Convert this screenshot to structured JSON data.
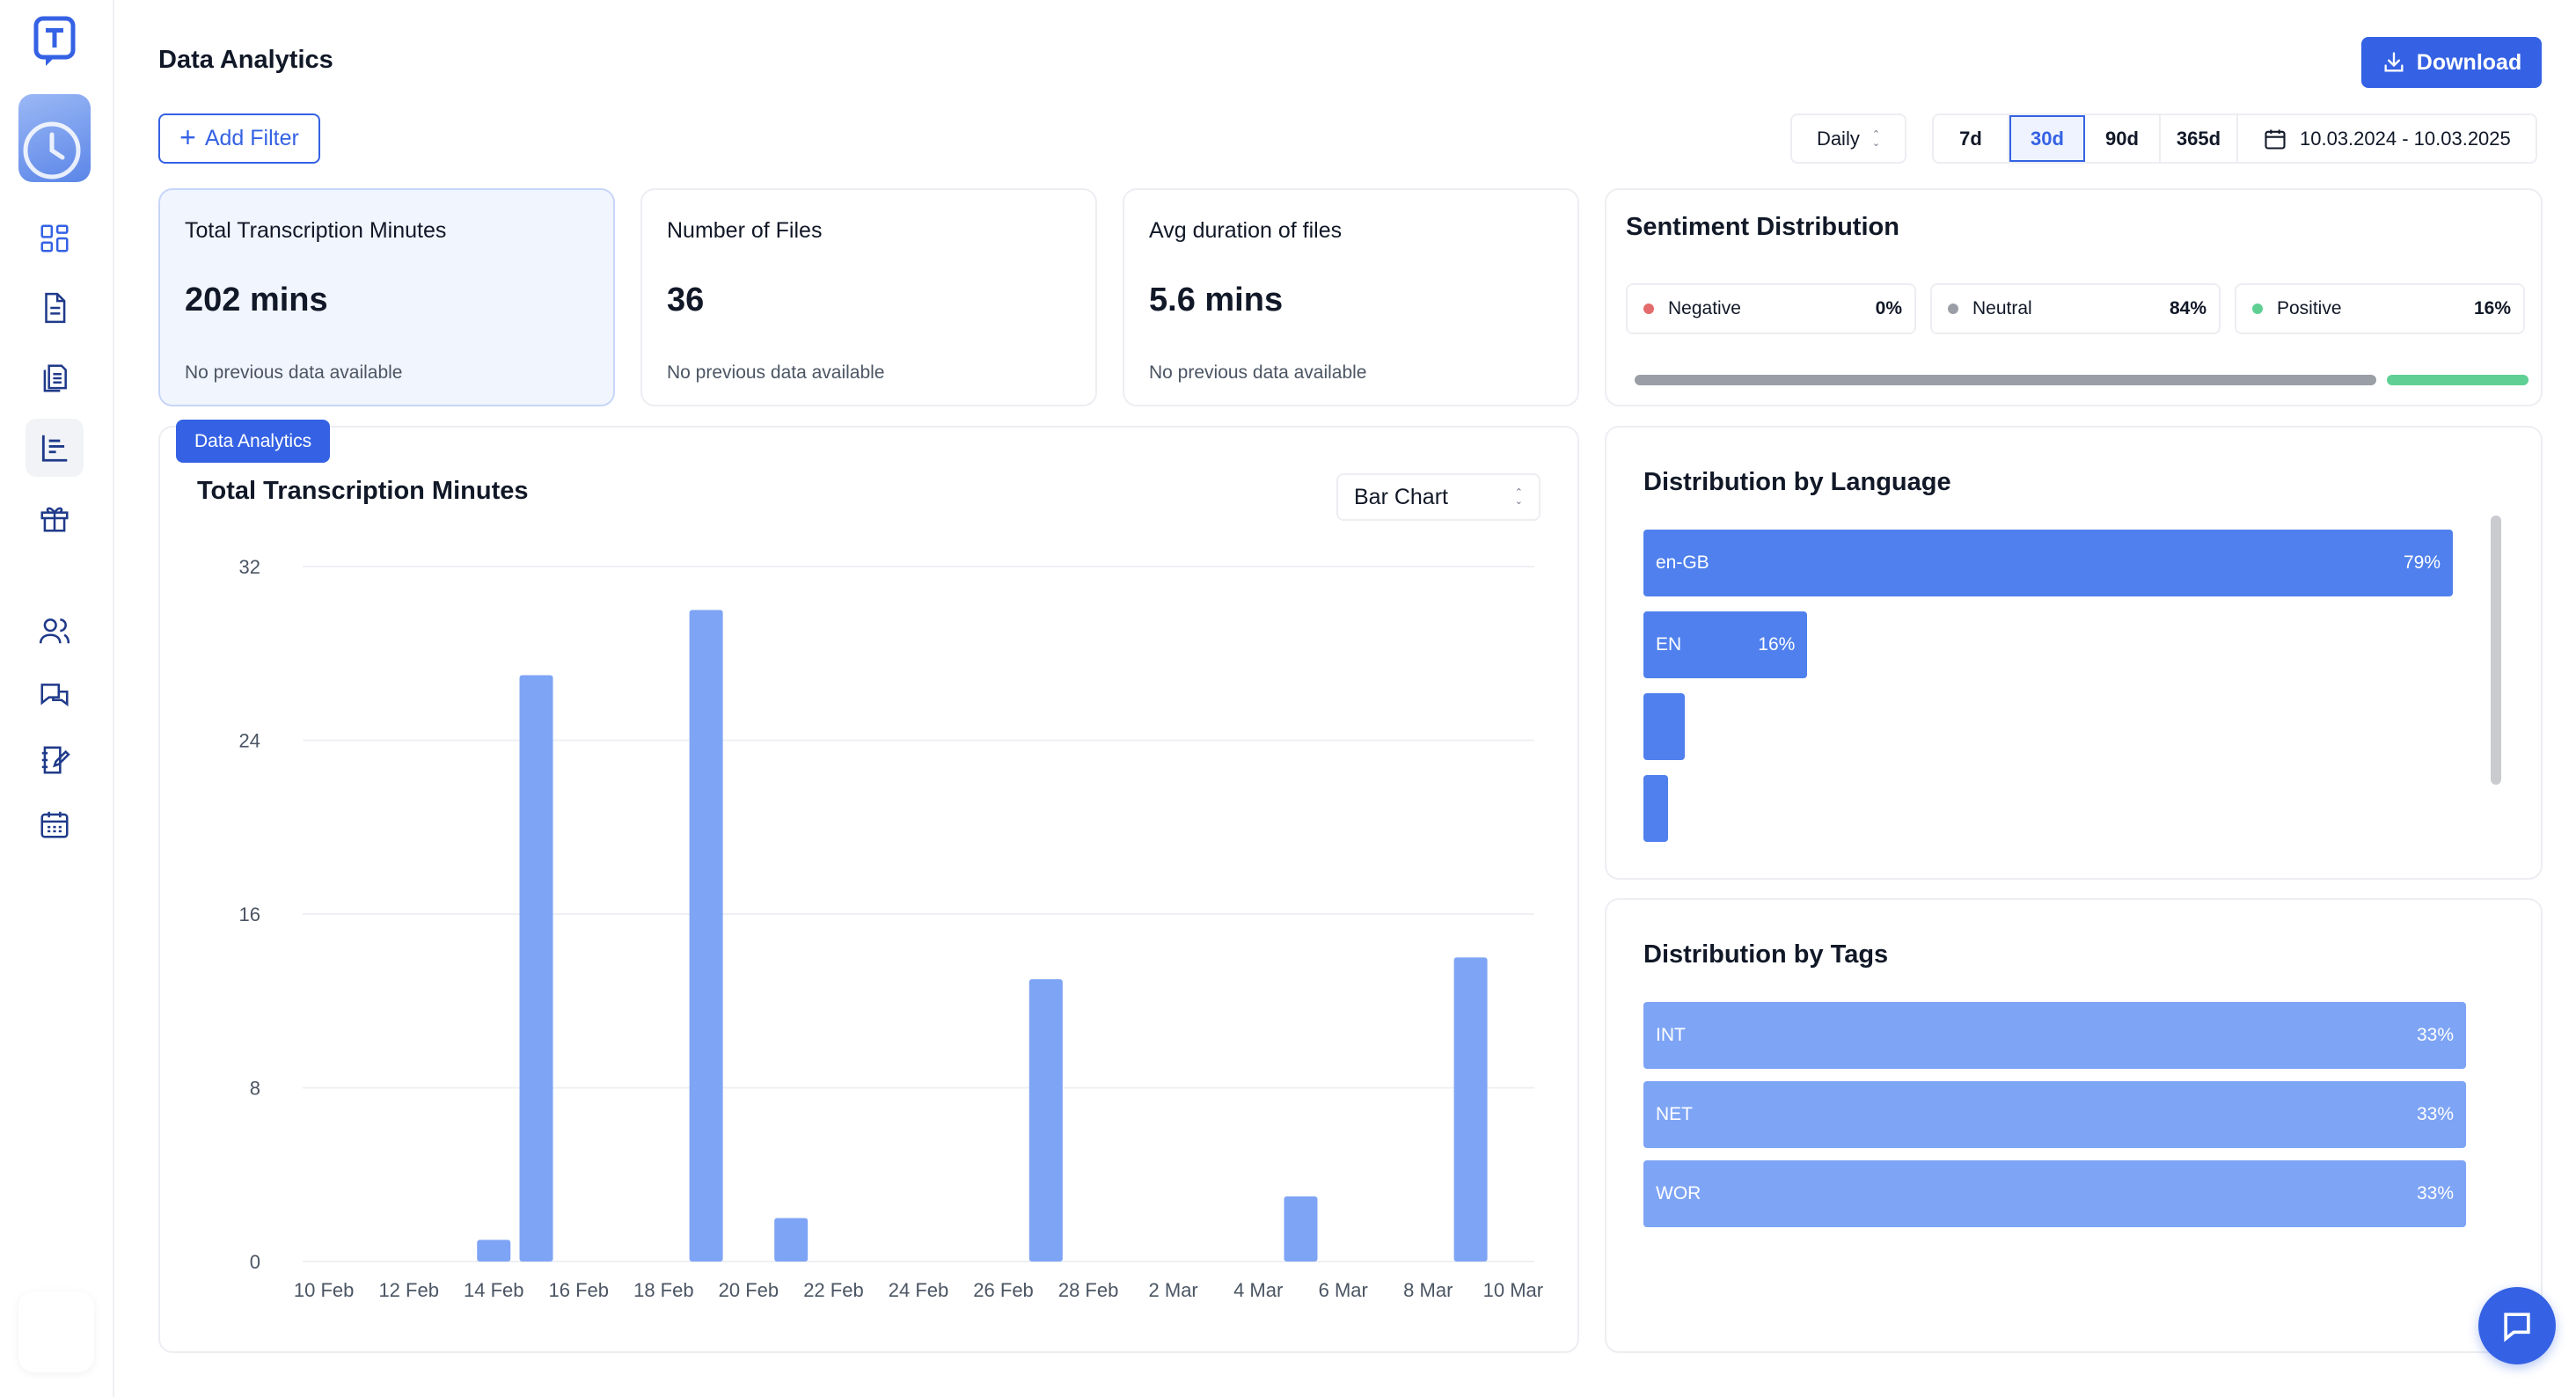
{
  "page": {
    "title": "Data Analytics",
    "download_label": "Download",
    "add_filter_label": "Add Filter"
  },
  "controls": {
    "interval": "Daily",
    "ranges": [
      "7d",
      "30d",
      "90d",
      "365d"
    ],
    "active_range": "30d",
    "date_range": "10.03.2024 - 10.03.2025"
  },
  "sidebar": {
    "icons": [
      "dashboard-icon",
      "document-icon",
      "documents-stack-icon",
      "analytics-icon",
      "gift-icon",
      "users-icon",
      "chat-icon",
      "notebook-edit-icon",
      "calendar-icon"
    ],
    "active": "analytics-icon"
  },
  "stats": [
    {
      "label": "Total Transcription Minutes",
      "value": "202 mins",
      "note": "No previous data available"
    },
    {
      "label": "Number of Files",
      "value": "36",
      "note": "No previous data available"
    },
    {
      "label": "Avg duration of files",
      "value": "5.6 mins",
      "note": "No previous data available"
    }
  ],
  "sentiment": {
    "title": "Sentiment Distribution",
    "items": [
      {
        "label": "Negative",
        "pct": "0%",
        "value": 0,
        "color": "#e46b6b"
      },
      {
        "label": "Neutral",
        "pct": "84%",
        "value": 84,
        "color": "#9a9ea6"
      },
      {
        "label": "Positive",
        "pct": "16%",
        "value": 16,
        "color": "#5fcf94"
      }
    ]
  },
  "main_chart": {
    "tag": "Data Analytics",
    "title": "Total Transcription Minutes",
    "chart_type_label": "Bar Chart"
  },
  "chart_data": {
    "type": "bar",
    "title": "Total Transcription Minutes",
    "xlabel": "",
    "ylabel": "",
    "ylim": [
      0,
      32
    ],
    "yticks": [
      "0",
      "8",
      "16",
      "24",
      "32"
    ],
    "xtick_labels": [
      "10 Feb",
      "12 Feb",
      "14 Feb",
      "16 Feb",
      "18 Feb",
      "20 Feb",
      "22 Feb",
      "24 Feb",
      "26 Feb",
      "28 Feb",
      "2 Mar",
      "4 Mar",
      "6 Mar",
      "8 Mar",
      "10 Mar"
    ],
    "categories": [
      "10 Feb",
      "11 Feb",
      "12 Feb",
      "13 Feb",
      "14 Feb",
      "15 Feb",
      "16 Feb",
      "17 Feb",
      "18 Feb",
      "19 Feb",
      "20 Feb",
      "21 Feb",
      "22 Feb",
      "23 Feb",
      "24 Feb",
      "25 Feb",
      "26 Feb",
      "27 Feb",
      "28 Feb",
      "1 Mar",
      "2 Mar",
      "3 Mar",
      "4 Mar",
      "5 Mar",
      "6 Mar",
      "7 Mar",
      "8 Mar",
      "9 Mar",
      "10 Mar"
    ],
    "values": [
      0,
      0,
      0,
      0,
      1,
      27,
      0,
      0,
      0,
      30,
      0,
      2,
      0,
      0,
      0,
      0,
      0,
      13,
      0,
      0,
      0,
      0,
      0,
      3,
      0,
      0,
      0,
      14,
      0
    ],
    "grid": true,
    "bar_color": "#7ea4f5"
  },
  "language": {
    "title": "Distribution by Language",
    "items": [
      {
        "label": "en-GB",
        "pct": "79%",
        "value": 79
      },
      {
        "label": "EN",
        "pct": "16%",
        "value": 16
      },
      {
        "label": "",
        "pct": "",
        "value": 4
      },
      {
        "label": "",
        "pct": "",
        "value": 1
      }
    ],
    "color": "#4f80ed"
  },
  "tags": {
    "title": "Distribution by Tags",
    "items": [
      {
        "label": "INT",
        "pct": "33%",
        "value": 33
      },
      {
        "label": "NET",
        "pct": "33%",
        "value": 33
      },
      {
        "label": "WOR",
        "pct": "33%",
        "value": 33
      }
    ],
    "color": "#7ea4f5"
  }
}
